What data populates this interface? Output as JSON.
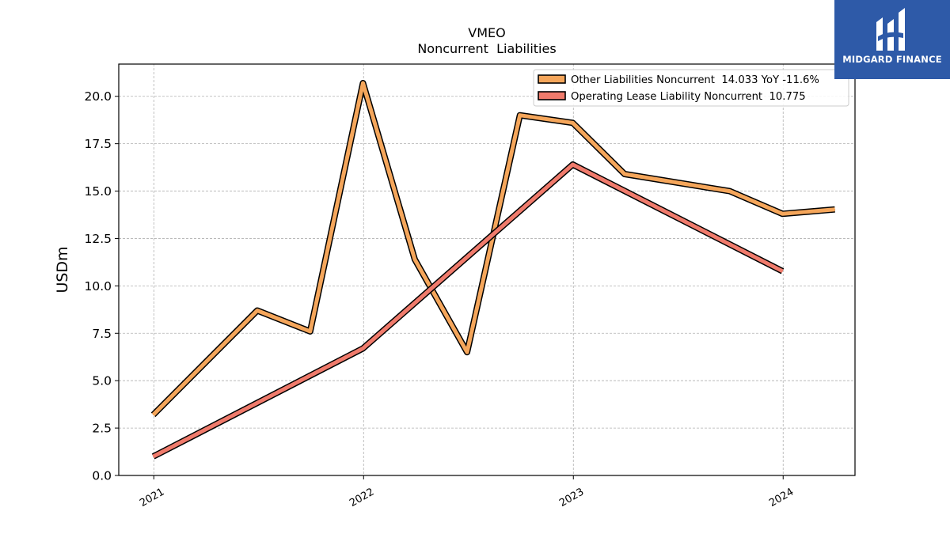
{
  "chart_data": {
    "type": "line",
    "title": "VMEO",
    "subtitle": "Noncurrent  Liabilities",
    "ylabel": "USDm",
    "xlabel": "",
    "ylim": [
      0,
      21.7
    ],
    "xlim": [
      "2020-11-01",
      "2024-05-05"
    ],
    "yticks": [
      0.0,
      2.5,
      5.0,
      7.5,
      10.0,
      12.5,
      15.0,
      17.5,
      20.0
    ],
    "ytick_labels": [
      "0.0",
      "2.5",
      "5.0",
      "7.5",
      "10.0",
      "12.5",
      "15.0",
      "17.5",
      "20.0"
    ],
    "xticks": [
      "2021-01-01",
      "2022-01-01",
      "2023-01-01",
      "2024-01-01"
    ],
    "xtick_labels": [
      "2021",
      "2022",
      "2023",
      "2024"
    ],
    "grid": true,
    "legend_position": "top-right",
    "series": [
      {
        "name": "Other Liabilities Noncurrent  14.033 YoY -11.6%",
        "color": "#f5a65b",
        "points": [
          [
            "2020-12-31",
            3.2
          ],
          [
            "2021-06-30",
            8.7
          ],
          [
            "2021-09-30",
            7.6
          ],
          [
            "2021-12-31",
            20.7
          ],
          [
            "2022-03-31",
            11.4
          ],
          [
            "2022-06-30",
            6.5
          ],
          [
            "2022-09-30",
            19.0
          ],
          [
            "2022-12-31",
            18.6
          ],
          [
            "2023-03-31",
            15.9
          ],
          [
            "2023-09-30",
            15.0
          ],
          [
            "2023-12-31",
            13.8
          ],
          [
            "2024-03-31",
            14.033
          ]
        ]
      },
      {
        "name": "Operating Lease Liability Noncurrent  10.775",
        "color": "#f07b6c",
        "points": [
          [
            "2020-12-31",
            1.0
          ],
          [
            "2021-12-31",
            6.7
          ],
          [
            "2022-12-31",
            16.4
          ],
          [
            "2023-12-31",
            10.775
          ]
        ]
      }
    ]
  },
  "logo": {
    "text": "MIDGARD FINANCE",
    "background": "#2e5aa8"
  }
}
